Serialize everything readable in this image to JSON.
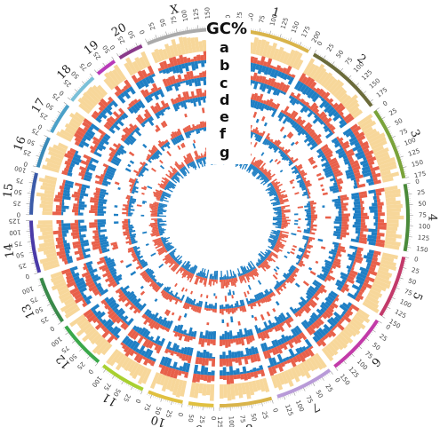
{
  "title": "GC%",
  "track_letters": [
    "a",
    "b",
    "c",
    "d",
    "e",
    "f",
    "g"
  ],
  "colors": {
    "gc_fill": "#f7d79a",
    "red": "#e8604a",
    "blue": "#1f7fc4",
    "tick": "#999999"
  },
  "chromosomes": [
    {
      "name": "1",
      "length": 200,
      "color": "#d9b44a"
    },
    {
      "name": "2",
      "length": 185,
      "color": "#6b6b3a"
    },
    {
      "name": "3",
      "length": 175,
      "color": "#7aa33a"
    },
    {
      "name": "4",
      "length": 160,
      "color": "#4a8a3a"
    },
    {
      "name": "5",
      "length": 150,
      "color": "#c23a6a"
    },
    {
      "name": "6",
      "length": 150,
      "color": "#c23aa8"
    },
    {
      "name": "7",
      "length": 140,
      "color": "#b89ad8"
    },
    {
      "name": "8",
      "length": 125,
      "color": "#d9b44a"
    },
    {
      "name": "9",
      "length": 60,
      "color": "#e0c040"
    },
    {
      "name": "10",
      "length": 85,
      "color": "#e0c040"
    },
    {
      "name": "11",
      "length": 110,
      "color": "#a8d030"
    },
    {
      "name": "12",
      "length": 115,
      "color": "#3aa84a"
    },
    {
      "name": "13",
      "length": 115,
      "color": "#3a8a4a"
    },
    {
      "name": "14",
      "length": 125,
      "color": "#4a3aa8"
    },
    {
      "name": "15",
      "length": 100,
      "color": "#3a5aa8"
    },
    {
      "name": "16",
      "length": 75,
      "color": "#3a8ab8"
    },
    {
      "name": "17",
      "length": 75,
      "color": "#4aa0c8"
    },
    {
      "name": "18",
      "length": 75,
      "color": "#7ac0d8"
    },
    {
      "name": "19",
      "length": 50,
      "color": "#b83ab8"
    },
    {
      "name": "20",
      "length": 60,
      "color": "#8a3a8a"
    },
    {
      "name": "X",
      "length": 160,
      "color": "#aaaaaa"
    }
  ]
}
